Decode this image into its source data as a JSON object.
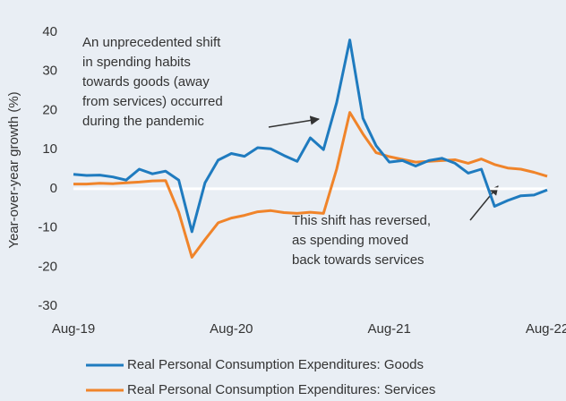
{
  "chart_data": {
    "type": "line",
    "ylabel": "Year-over-year growth (%)",
    "categories": [
      "Aug-19",
      null,
      null,
      null,
      null,
      null,
      null,
      null,
      null,
      null,
      null,
      null,
      "Aug-20",
      null,
      null,
      null,
      null,
      null,
      null,
      null,
      null,
      null,
      null,
      null,
      "Aug-21",
      null,
      null,
      null,
      null,
      null,
      null,
      null,
      null,
      null,
      null,
      null,
      "Aug-22"
    ],
    "series": [
      {
        "name": "Real Personal Consumption Expenditures: Goods",
        "color": "#1f7bbf",
        "values": [
          3.7,
          3.4,
          3.5,
          3.0,
          2.2,
          5.0,
          3.8,
          4.5,
          2.2,
          -11,
          1.5,
          7.3,
          9.0,
          8.3,
          10.5,
          10.2,
          8.5,
          7.0,
          13.0,
          10.0,
          22,
          38,
          18,
          11,
          6.8,
          7.2,
          5.8,
          7.2,
          7.8,
          6.5,
          4.0,
          5.0,
          -4.5,
          -3.0,
          -1.8,
          -1.6,
          -0.3
        ]
      },
      {
        "name": "Real Personal Consumption Expenditures: Services",
        "color": "#f0842a",
        "values": [
          1.2,
          1.2,
          1.4,
          1.3,
          1.5,
          1.7,
          2.0,
          2.1,
          -6.0,
          -17.5,
          -13,
          -8.7,
          -7.5,
          -6.8,
          -5.9,
          -5.6,
          -6.1,
          -6.3,
          -6.0,
          -6.3,
          5.0,
          19.5,
          14,
          9.2,
          8.2,
          7.5,
          6.8,
          7.0,
          7.2,
          7.4,
          6.5,
          7.6,
          6.2,
          5.3,
          5.0,
          4.2,
          3.2
        ]
      }
    ],
    "ylim": [
      -30,
      40
    ],
    "yticks": [
      -30,
      -20,
      -10,
      0,
      10,
      20,
      30,
      40
    ],
    "annotations": [
      {
        "lines": [
          "An unprecedented shift",
          "in spending habits",
          "towards goods (away",
          "from services) occurred",
          "during the pandemic"
        ]
      },
      {
        "lines": [
          "This shift has reversed,",
          "as spending moved",
          "back towards services"
        ]
      }
    ]
  }
}
